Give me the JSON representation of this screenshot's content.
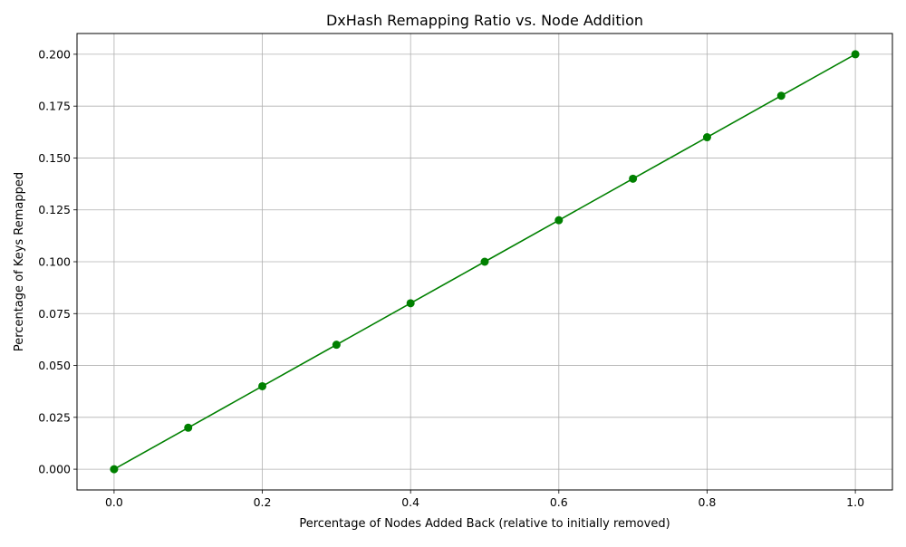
{
  "chart_data": {
    "type": "line",
    "title": "DxHash Remapping Ratio vs. Node Addition",
    "xlabel": "Percentage of Nodes Added Back (relative to initially removed)",
    "ylabel": "Percentage of Keys Remapped",
    "xlim": [
      -0.05,
      1.05
    ],
    "ylim": [
      -0.01,
      0.21
    ],
    "xticks": [
      0.0,
      0.2,
      0.4,
      0.6,
      0.8,
      1.0
    ],
    "xtick_labels": [
      "0.0",
      "0.2",
      "0.4",
      "0.6",
      "0.8",
      "1.0"
    ],
    "yticks": [
      0.0,
      0.025,
      0.05,
      0.075,
      0.1,
      0.125,
      0.15,
      0.175,
      0.2
    ],
    "ytick_labels": [
      "0.000",
      "0.025",
      "0.050",
      "0.075",
      "0.100",
      "0.125",
      "0.150",
      "0.175",
      "0.200"
    ],
    "grid": true,
    "series": [
      {
        "color": "#008000",
        "marker": "circle",
        "x": [
          0.0,
          0.1,
          0.2,
          0.3,
          0.4,
          0.5,
          0.6,
          0.7,
          0.8,
          0.9,
          1.0
        ],
        "y": [
          0.0,
          0.02,
          0.04,
          0.06,
          0.08,
          0.1,
          0.12,
          0.14,
          0.16,
          0.18,
          0.2
        ]
      }
    ]
  }
}
